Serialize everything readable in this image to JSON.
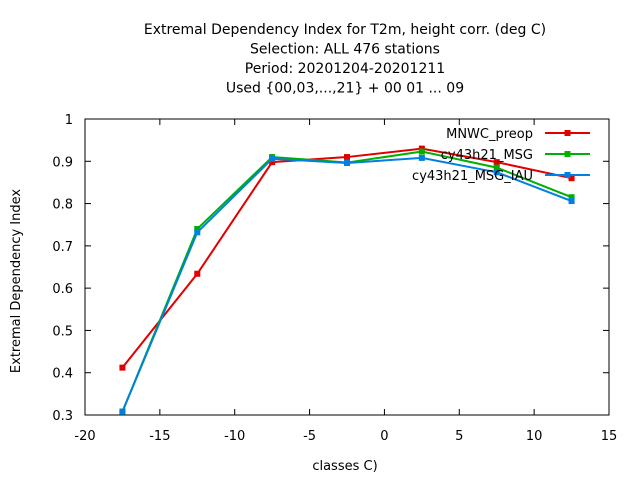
{
  "chart_data": {
    "type": "line",
    "title_lines": [
      "Extremal Dependency Index  for T2m, height corr. (deg C)",
      "Selection: ALL    476 stations",
      "Period: 20201204-20201211",
      "Used {00,03,...,21} + 00 01 ... 09"
    ],
    "xlabel": "classes C)",
    "ylabel": "Extremal Dependency Index",
    "xlim": [
      -20,
      15
    ],
    "ylim": [
      0.3,
      1.0
    ],
    "xticks": [
      -20,
      -15,
      -10,
      -5,
      0,
      5,
      10,
      15
    ],
    "yticks": [
      0.3,
      0.4,
      0.5,
      0.6,
      0.7,
      0.8,
      0.9,
      1.0
    ],
    "xtick_labels": [
      "-20",
      "-15",
      "-10",
      "-5",
      "0",
      "5",
      "10",
      "15"
    ],
    "ytick_labels": [
      "0.3",
      "0.4",
      "0.5",
      "0.6",
      "0.7",
      "0.8",
      "0.9",
      "1"
    ],
    "x": [
      -17.5,
      -12.5,
      -7.5,
      -2.5,
      2.5,
      7.5,
      12.5
    ],
    "grid": false,
    "legend_position": "top-right",
    "series": [
      {
        "name": "MNWC_preop",
        "color": "#e00000",
        "values": [
          0.412,
          0.634,
          0.898,
          0.91,
          0.93,
          0.898,
          0.86
        ]
      },
      {
        "name": "cy43h21_MSG",
        "color": "#00b000",
        "values": [
          0.308,
          0.74,
          0.91,
          0.897,
          0.923,
          0.885,
          0.815
        ]
      },
      {
        "name": "cy43h21_MSG_IAU",
        "color": "#0080e0",
        "values": [
          0.308,
          0.732,
          0.906,
          0.896,
          0.908,
          0.874,
          0.806
        ]
      }
    ]
  }
}
